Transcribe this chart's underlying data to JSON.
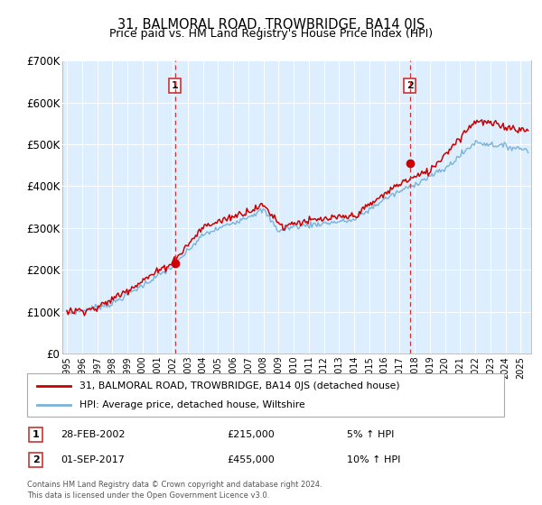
{
  "title": "31, BALMORAL ROAD, TROWBRIDGE, BA14 0JS",
  "subtitle": "Price paid vs. HM Land Registry's House Price Index (HPI)",
  "bg_color": "#ffffff",
  "plot_bg_color": "#ddeeff",
  "ylim": [
    0,
    700000
  ],
  "yticks": [
    0,
    100000,
    200000,
    300000,
    400000,
    500000,
    600000,
    700000
  ],
  "ytick_labels": [
    "£0",
    "£100K",
    "£200K",
    "£300K",
    "£400K",
    "£500K",
    "£600K",
    "£700K"
  ],
  "xlim_start": 1994.7,
  "xlim_end": 2025.7,
  "hpi_color": "#7ab3d9",
  "price_color": "#cc0000",
  "marker1_x": 2002.15,
  "marker1_y": 215000,
  "marker2_x": 2017.67,
  "marker2_y": 455000,
  "vline_color": "#cc3333",
  "legend_label1": "31, BALMORAL ROAD, TROWBRIDGE, BA14 0JS (detached house)",
  "legend_label2": "HPI: Average price, detached house, Wiltshire",
  "annotation1_date": "28-FEB-2002",
  "annotation1_price": "£215,000",
  "annotation1_hpi": "5% ↑ HPI",
  "annotation2_date": "01-SEP-2017",
  "annotation2_price": "£455,000",
  "annotation2_hpi": "10% ↑ HPI",
  "footer1": "Contains HM Land Registry data © Crown copyright and database right 2024.",
  "footer2": "This data is licensed under the Open Government Licence v3.0."
}
